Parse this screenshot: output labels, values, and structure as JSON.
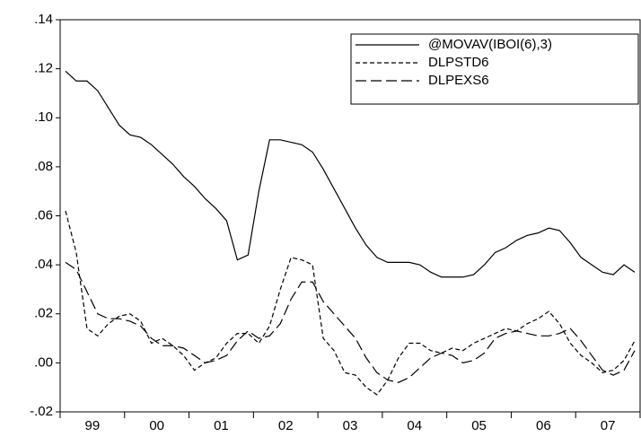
{
  "chart_data": {
    "type": "line",
    "categories": [
      null,
      null,
      null,
      "99",
      null,
      null,
      null,
      null,
      null,
      "00",
      null,
      null,
      null,
      null,
      null,
      "01",
      null,
      null,
      null,
      null,
      null,
      "02",
      null,
      null,
      null,
      null,
      null,
      "03",
      null,
      null,
      null,
      null,
      null,
      "04",
      null,
      null,
      null,
      null,
      null,
      "05",
      null,
      null,
      null,
      null,
      null,
      "06",
      null,
      null,
      null,
      null,
      null,
      "07",
      null,
      null
    ],
    "series": [
      {
        "name": "@MOVAV(IBOI(6),3)",
        "color": "#000000",
        "dash": "solid",
        "values": [
          0.119,
          0.115,
          0.115,
          0.111,
          0.104,
          0.097,
          0.093,
          0.092,
          0.089,
          0.085,
          0.081,
          0.076,
          0.072,
          0.067,
          0.063,
          0.058,
          0.042,
          0.044,
          0.07,
          0.091,
          0.091,
          0.09,
          0.089,
          0.086,
          0.079,
          0.071,
          0.063,
          0.055,
          0.048,
          0.043,
          0.041,
          0.041,
          0.041,
          0.04,
          0.037,
          0.035,
          0.035,
          0.035,
          0.036,
          0.04,
          0.045,
          0.047,
          0.05,
          0.052,
          0.053,
          0.055,
          0.054,
          0.049,
          0.043,
          0.04,
          0.037,
          0.036,
          0.04,
          0.037
        ]
      },
      {
        "name": "DLPSTD6",
        "color": "#000000",
        "dash": "short",
        "values": [
          0.062,
          0.045,
          0.014,
          0.011,
          0.016,
          0.019,
          0.02,
          0.017,
          0.008,
          0.01,
          0.007,
          0.003,
          -0.003,
          0.0,
          0.002,
          0.008,
          0.012,
          0.012,
          0.008,
          0.015,
          0.03,
          0.043,
          0.042,
          0.04,
          0.01,
          0.005,
          -0.004,
          -0.005,
          -0.01,
          -0.013,
          -0.007,
          0.002,
          0.008,
          0.008,
          0.005,
          0.004,
          0.006,
          0.005,
          0.008,
          0.01,
          0.012,
          0.014,
          0.013,
          0.016,
          0.018,
          0.021,
          0.016,
          0.008,
          0.003,
          0.0,
          -0.004,
          -0.003,
          0.001,
          0.009
        ]
      },
      {
        "name": "DLPEXS6",
        "color": "#000000",
        "dash": "long",
        "values": [
          0.041,
          0.038,
          0.029,
          0.02,
          0.018,
          0.018,
          0.017,
          0.015,
          0.01,
          0.007,
          0.007,
          0.006,
          0.003,
          0.0,
          0.001,
          0.003,
          0.009,
          0.013,
          0.01,
          0.011,
          0.016,
          0.026,
          0.033,
          0.033,
          0.025,
          0.02,
          0.015,
          0.01,
          0.002,
          -0.004,
          -0.007,
          -0.008,
          -0.006,
          -0.002,
          0.002,
          0.004,
          0.003,
          0.0,
          0.001,
          0.004,
          0.01,
          0.012,
          0.013,
          0.012,
          0.011,
          0.011,
          0.012,
          0.014,
          0.009,
          0.003,
          -0.003,
          -0.005,
          -0.003,
          0.005
        ]
      }
    ],
    "ylim": [
      -0.02,
      0.14
    ],
    "yticks": [
      {
        "value": -0.02,
        "label": "-.02"
      },
      {
        "value": 0,
        "label": ".00"
      },
      {
        "value": 0.02,
        "label": ".02"
      },
      {
        "value": 0.04,
        "label": ".04"
      },
      {
        "value": 0.06,
        "label": ".06"
      },
      {
        "value": 0.08,
        "label": ".08"
      },
      {
        "value": 0.1,
        "label": ".10"
      },
      {
        "value": 0.12,
        "label": ".12"
      },
      {
        "value": 0.14,
        "label": ".14"
      }
    ],
    "grid": false,
    "legend": "upper right"
  }
}
